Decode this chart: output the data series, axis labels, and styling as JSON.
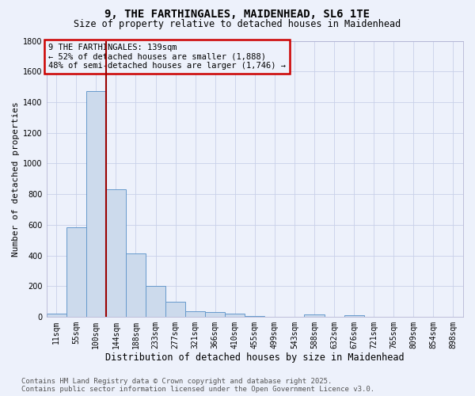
{
  "title": "9, THE FARTHINGALES, MAIDENHEAD, SL6 1TE",
  "subtitle": "Size of property relative to detached houses in Maidenhead",
  "xlabel": "Distribution of detached houses by size in Maidenhead",
  "ylabel": "Number of detached properties",
  "categories": [
    "11sqm",
    "55sqm",
    "100sqm",
    "144sqm",
    "188sqm",
    "233sqm",
    "277sqm",
    "321sqm",
    "366sqm",
    "410sqm",
    "455sqm",
    "499sqm",
    "543sqm",
    "588sqm",
    "632sqm",
    "676sqm",
    "721sqm",
    "765sqm",
    "809sqm",
    "854sqm",
    "898sqm"
  ],
  "values": [
    20,
    585,
    1470,
    830,
    415,
    200,
    100,
    38,
    32,
    20,
    5,
    0,
    0,
    18,
    0,
    10,
    0,
    0,
    0,
    0,
    0
  ],
  "bar_color": "#ccdaec",
  "bar_edge_color": "#6699cc",
  "ylim_max": 1800,
  "yticks": [
    0,
    200,
    400,
    600,
    800,
    1000,
    1200,
    1400,
    1600,
    1800
  ],
  "property_line_x": 2.5,
  "property_line_color": "#990000",
  "annotation_line1": "9 THE FARTHINGALES: 139sqm",
  "annotation_line2": "← 52% of detached houses are smaller (1,888)",
  "annotation_line3": "48% of semi-detached houses are larger (1,746) →",
  "annotation_box_edgecolor": "#cc0000",
  "footer_line1": "Contains HM Land Registry data © Crown copyright and database right 2025.",
  "footer_line2": "Contains public sector information licensed under the Open Government Licence v3.0.",
  "bg_color": "#edf1fb",
  "grid_color": "#c8d0e8",
  "title_fontsize": 10,
  "subtitle_fontsize": 8.5,
  "ylabel_fontsize": 8,
  "xlabel_fontsize": 8.5,
  "tick_fontsize": 7,
  "ann_fontsize": 7.5,
  "footer_fontsize": 6.5
}
